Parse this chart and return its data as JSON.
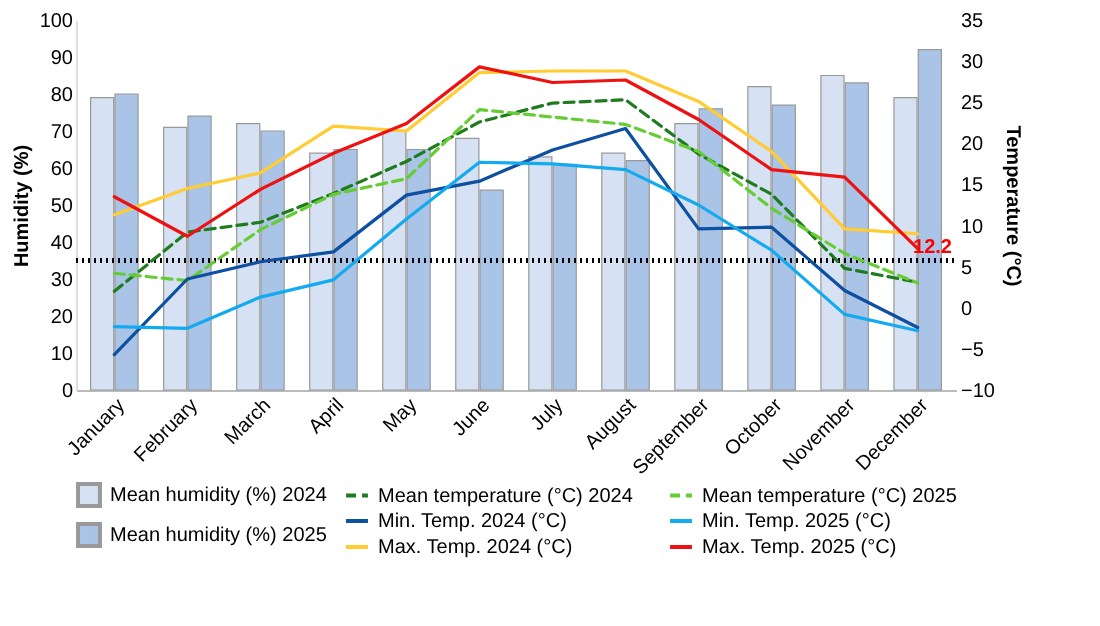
{
  "chart_data": {
    "type": "bar",
    "categories": [
      "January",
      "February",
      "March",
      "April",
      "May",
      "June",
      "July",
      "August",
      "September",
      "October",
      "November",
      "December"
    ],
    "ylabel": "Humidity (%)",
    "y2label": "Temperature (°C)",
    "ylim": [
      0,
      100
    ],
    "yticks": [
      0,
      10,
      20,
      30,
      40,
      50,
      60,
      70,
      80,
      90,
      100
    ],
    "y2lim": [
      -10,
      35
    ],
    "y2ticks": [
      -10,
      -5,
      0,
      5,
      10,
      15,
      20,
      25,
      30,
      35
    ],
    "grid": false,
    "legend": "bottom",
    "marker": "none",
    "series": [
      {
        "name": "Mean humidity (%) 2024",
        "color": "#d6e2f3",
        "values": [
          79,
          71,
          72,
          64,
          70,
          68,
          63,
          64,
          72,
          82,
          85,
          79
        ]
      },
      {
        "name": "Mean humidity (%) 2025",
        "color": "#a9c4e6",
        "values": [
          80,
          74,
          70,
          65,
          65,
          54,
          61,
          62,
          76,
          77,
          83,
          92
        ]
      },
      {
        "name": "Mean temperature (°C) 2024",
        "type": "line",
        "axis": "y2",
        "line_style": "dashed",
        "color": "#1e7b1e",
        "values": [
          2.0,
          9.2,
          10.4,
          13.9,
          17.8,
          22.6,
          24.9,
          25.3,
          18.7,
          13.8,
          4.8,
          3.1
        ]
      },
      {
        "name": "Mean temperature (°C) 2025",
        "type": "line",
        "axis": "y2",
        "line_style": "dashed",
        "color": "#66cc33",
        "values": [
          4.2,
          3.3,
          9.5,
          13.8,
          15.7,
          24.1,
          23.2,
          22.3,
          19.0,
          12.1,
          6.6,
          3.0
        ]
      },
      {
        "name": "Min. Temp. 2024 (°C)",
        "type": "line",
        "axis": "y2",
        "line_style": "solid",
        "color": "#0d4fa0",
        "values": [
          -5.7,
          3.5,
          5.6,
          6.8,
          13.7,
          15.4,
          19.2,
          21.8,
          9.6,
          9.8,
          2.1,
          -2.4
        ]
      },
      {
        "name": "Min. Temp. 2025 (°C)",
        "type": "line",
        "axis": "y2",
        "line_style": "solid",
        "color": "#14aaf0",
        "values": [
          -2.3,
          -2.5,
          1.3,
          3.4,
          10.8,
          17.7,
          17.5,
          16.8,
          12.5,
          7.0,
          -0.8,
          -2.8
        ]
      },
      {
        "name": "Max. Temp. 2024 (°C)",
        "type": "line",
        "axis": "y2",
        "line_style": "solid",
        "color": "#ffcc33",
        "values": [
          11.3,
          14.5,
          16.4,
          22.1,
          21.5,
          28.6,
          28.8,
          28.8,
          25.1,
          19.0,
          9.6,
          9.0
        ]
      },
      {
        "name": "Max. Temp. 2025 (°C)",
        "type": "line",
        "axis": "y2",
        "line_style": "solid",
        "color": "#ee1111",
        "values": [
          13.5,
          8.7,
          14.4,
          18.8,
          22.4,
          29.3,
          27.4,
          27.7,
          22.9,
          16.8,
          15.9,
          7.2
        ]
      }
    ],
    "ref_lines": [
      {
        "axis": "y",
        "value": 35,
        "color": "#000000",
        "line_style": "dotted"
      }
    ],
    "annotations": [
      "12.2"
    ]
  }
}
